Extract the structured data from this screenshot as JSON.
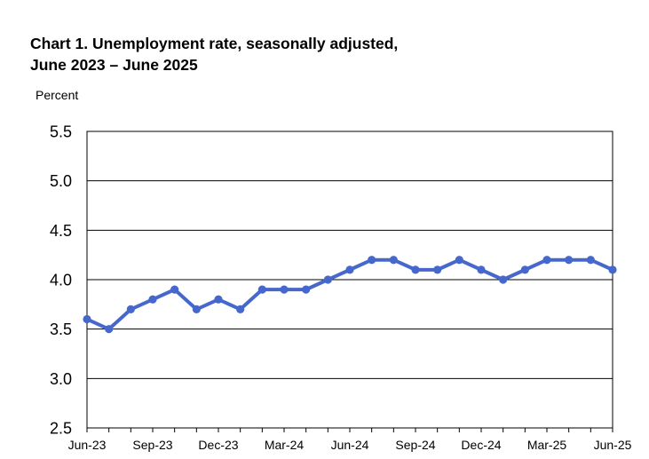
{
  "chart_data": {
    "type": "line",
    "title_line1": "Chart 1. Unemployment rate, seasonally adjusted,",
    "title_line2": "June 2023 – June 2025",
    "xlabel": "",
    "ylabel": "Percent",
    "ylim": [
      2.5,
      5.5
    ],
    "yticks": [
      "2.5",
      "3.0",
      "3.5",
      "4.0",
      "4.5",
      "5.0",
      "5.5"
    ],
    "grid": "horizontal",
    "x": [
      "Jun-23",
      "Jul-23",
      "Aug-23",
      "Sep-23",
      "Oct-23",
      "Nov-23",
      "Dec-23",
      "Jan-24",
      "Feb-24",
      "Mar-24",
      "Apr-24",
      "May-24",
      "Jun-24",
      "Jul-24",
      "Aug-24",
      "Sep-24",
      "Oct-24",
      "Nov-24",
      "Dec-24",
      "Jan-25",
      "Feb-25",
      "Mar-25",
      "Apr-25",
      "May-25",
      "Jun-25"
    ],
    "xtick_labels": [
      "Jun-23",
      "Sep-23",
      "Dec-23",
      "Mar-24",
      "Jun-24",
      "Sep-24",
      "Dec-24",
      "Mar-25",
      "Jun-25"
    ],
    "series": [
      {
        "values": [
          3.6,
          3.5,
          3.7,
          3.8,
          3.9,
          3.7,
          3.8,
          3.7,
          3.9,
          3.9,
          3.9,
          4.0,
          4.1,
          4.2,
          4.2,
          4.1,
          4.1,
          4.2,
          4.1,
          4.0,
          4.1,
          4.2,
          4.2,
          4.2,
          4.1
        ],
        "color": "#4668CC"
      }
    ],
    "colors": {
      "line": "#4668CC",
      "grid": "#000000",
      "axis": "#000000"
    }
  }
}
